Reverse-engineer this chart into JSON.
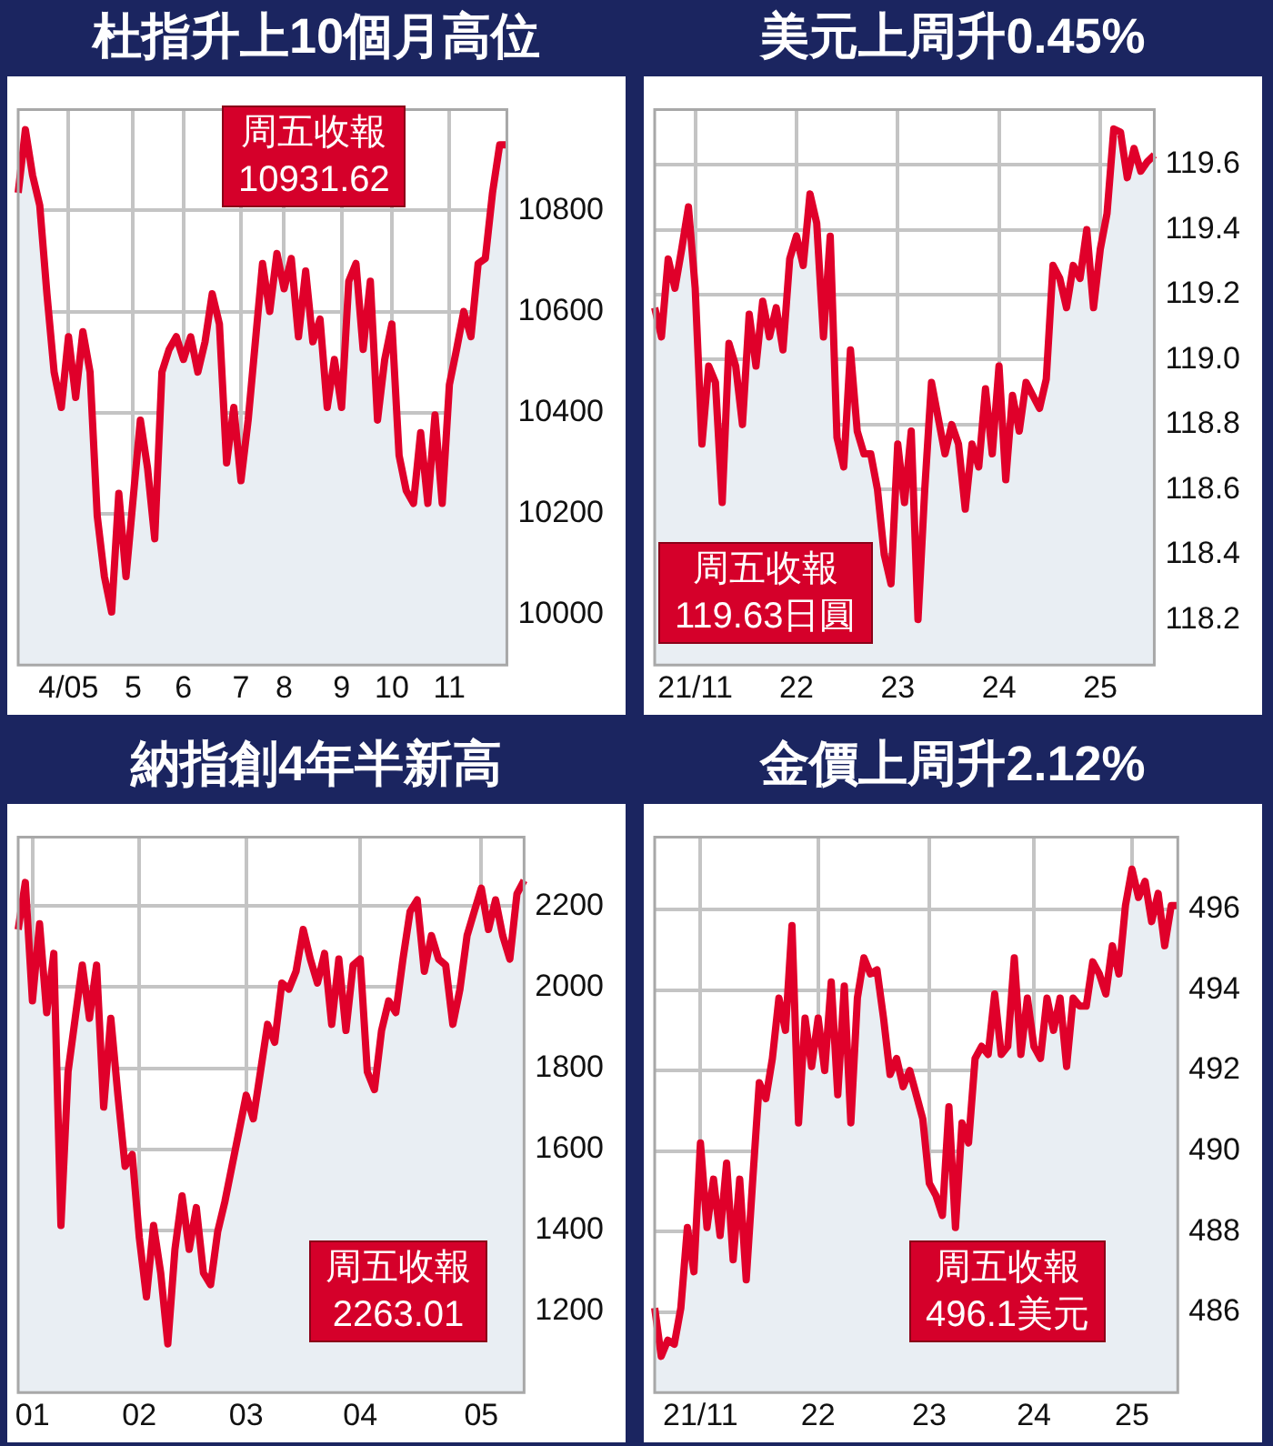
{
  "chart_data": [
    {
      "type": "area",
      "title": "杜指升上10個月高位",
      "annotations": [
        "周五收報",
        "10931.62"
      ],
      "categories": [
        null,
        null,
        null,
        null,
        null,
        null,
        null,
        "4/05",
        null,
        null,
        null,
        null,
        null,
        null,
        null,
        null,
        "5",
        null,
        null,
        null,
        null,
        null,
        null,
        "6",
        null,
        null,
        null,
        null,
        null,
        null,
        null,
        "7",
        null,
        null,
        null,
        null,
        null,
        "8",
        null,
        null,
        null,
        null,
        null,
        null,
        null,
        "9",
        null,
        null,
        null,
        null,
        null,
        null,
        "10",
        null,
        null,
        null,
        null,
        null,
        null,
        null,
        "11",
        null,
        null,
        null,
        null,
        null,
        null,
        null,
        null
      ],
      "series": [
        {
          "color": "#e0002a",
          "values": [
            10835,
            10960,
            10870,
            10810,
            10635,
            10480,
            10410,
            10550,
            10430,
            10560,
            10480,
            10195,
            10075,
            10005,
            10240,
            10075,
            10230,
            10385,
            10290,
            10150,
            10480,
            10525,
            10550,
            10505,
            10550,
            10480,
            10540,
            10635,
            10575,
            10300,
            10410,
            10265,
            10385,
            10540,
            10695,
            10600,
            10715,
            10645,
            10705,
            10550,
            10680,
            10540,
            10585,
            10410,
            10505,
            10410,
            10660,
            10695,
            10525,
            10660,
            10385,
            10505,
            10575,
            10315,
            10245,
            10220,
            10360,
            10220,
            10395,
            10220,
            10455,
            10525,
            10600,
            10550,
            10695,
            10705,
            10835,
            10930,
            10930
          ]
        }
      ],
      "ylim": [
        9900,
        11000
      ],
      "yticks": [
        10000,
        10200,
        10400,
        10600,
        10800
      ],
      "grid": true
    },
    {
      "type": "area",
      "title": "美元上周升0.45%",
      "annotations": [
        "周五收報",
        "119.63日圓"
      ],
      "categories": [
        null,
        null,
        null,
        null,
        null,
        null,
        "21/11",
        null,
        null,
        null,
        null,
        null,
        null,
        null,
        null,
        null,
        null,
        null,
        null,
        null,
        null,
        "22",
        null,
        null,
        null,
        null,
        null,
        null,
        null,
        null,
        null,
        null,
        null,
        null,
        null,
        null,
        "23",
        null,
        null,
        null,
        null,
        null,
        null,
        null,
        null,
        null,
        null,
        null,
        null,
        null,
        null,
        "24",
        null,
        null,
        null,
        null,
        null,
        null,
        null,
        null,
        null,
        null,
        null,
        null,
        null,
        null,
        "25",
        null,
        null,
        null,
        null,
        null,
        null,
        null,
        null
      ],
      "series": [
        {
          "color": "#e0002a",
          "values": [
            119.16,
            119.07,
            119.31,
            119.22,
            119.34,
            119.47,
            119.22,
            118.74,
            118.98,
            118.93,
            118.56,
            119.05,
            118.98,
            118.8,
            119.14,
            118.98,
            119.18,
            119.07,
            119.16,
            119.03,
            119.31,
            119.38,
            119.29,
            119.51,
            119.42,
            119.07,
            119.38,
            118.76,
            118.67,
            119.03,
            118.78,
            118.71,
            118.71,
            118.6,
            118.4,
            118.31,
            118.74,
            118.56,
            118.78,
            118.2,
            118.6,
            118.93,
            118.82,
            118.71,
            118.8,
            118.74,
            118.54,
            118.74,
            118.67,
            118.91,
            118.71,
            118.98,
            118.63,
            118.89,
            118.78,
            118.93,
            118.89,
            118.85,
            118.94,
            119.29,
            119.25,
            119.16,
            119.29,
            119.25,
            119.4,
            119.16,
            119.34,
            119.45,
            119.71,
            119.7,
            119.56,
            119.65,
            119.58,
            119.61,
            119.63
          ]
        }
      ],
      "ylim": [
        118.06,
        119.77
      ],
      "yticks": [
        {
          "value": 118.2,
          "label": "118.2"
        },
        {
          "value": 118.4,
          "label": "118.4"
        },
        {
          "value": 118.6,
          "label": "118.6"
        },
        {
          "value": 118.8,
          "label": "118.8"
        },
        {
          "value": 119,
          "label": "119.0"
        },
        {
          "value": 119.2,
          "label": "119.2"
        },
        {
          "value": 119.4,
          "label": "119.4"
        },
        {
          "value": 119.6,
          "label": "119.6"
        }
      ],
      "grid": true
    },
    {
      "type": "area",
      "title": "納指創4年半新高",
      "annotations": [
        "周五收報",
        "2263.01"
      ],
      "categories": [
        null,
        null,
        "01",
        null,
        null,
        null,
        null,
        null,
        null,
        null,
        null,
        null,
        null,
        null,
        null,
        null,
        null,
        "02",
        null,
        null,
        null,
        null,
        null,
        null,
        null,
        null,
        null,
        null,
        null,
        null,
        null,
        null,
        "03",
        null,
        null,
        null,
        null,
        null,
        null,
        null,
        null,
        null,
        null,
        null,
        null,
        null,
        null,
        null,
        "04",
        null,
        null,
        null,
        null,
        null,
        null,
        null,
        null,
        null,
        null,
        null,
        null,
        null,
        null,
        null,
        null,
        "05",
        null,
        null,
        null,
        null,
        null,
        null
      ],
      "series": [
        {
          "color": "#e0002a",
          "values": [
            2142,
            2258,
            1966,
            2156,
            1937,
            2083,
            1412,
            1791,
            1923,
            2054,
            1923,
            2054,
            1704,
            1923,
            1733,
            1558,
            1587,
            1382,
            1236,
            1412,
            1295,
            1120,
            1353,
            1485,
            1353,
            1456,
            1295,
            1266,
            1397,
            1470,
            1558,
            1645,
            1733,
            1675,
            1791,
            1908,
            1864,
            2010,
            1995,
            2039,
            2142,
            2069,
            2010,
            2083,
            1908,
            2069,
            1893,
            2054,
            2069,
            1791,
            1747,
            1893,
            1966,
            1937,
            2069,
            2186,
            2215,
            2039,
            2127,
            2069,
            2054,
            1908,
            1995,
            2127,
            2186,
            2244,
            2142,
            2215,
            2127,
            2069,
            2230,
            2263
          ]
        }
      ],
      "ylim": [
        1000,
        2370
      ],
      "yticks": [
        1200,
        1400,
        1600,
        1800,
        2000,
        2200
      ],
      "grid": true
    },
    {
      "type": "area",
      "title": "金價上周升2.12%",
      "annotations": [
        "周五收報",
        "496.1美元"
      ],
      "categories": [
        null,
        null,
        null,
        null,
        null,
        null,
        null,
        "21/11",
        null,
        null,
        null,
        null,
        null,
        null,
        null,
        null,
        null,
        null,
        null,
        null,
        null,
        null,
        null,
        null,
        null,
        "22",
        null,
        null,
        null,
        null,
        null,
        null,
        null,
        null,
        null,
        null,
        null,
        null,
        null,
        null,
        null,
        null,
        "23",
        null,
        null,
        null,
        null,
        null,
        null,
        null,
        null,
        null,
        null,
        null,
        null,
        null,
        null,
        null,
        "24",
        null,
        null,
        null,
        null,
        null,
        null,
        null,
        null,
        null,
        null,
        null,
        null,
        null,
        null,
        "25",
        null,
        null,
        null,
        null,
        null,
        null,
        null
      ],
      "series": [
        {
          "color": "#e0002a",
          "values": [
            486.1,
            484.9,
            485.3,
            485.2,
            486.1,
            488.1,
            487,
            490.2,
            488.1,
            489.3,
            487.9,
            489.7,
            487.3,
            489.3,
            486.8,
            489.3,
            491.7,
            491.3,
            492.3,
            493.8,
            493,
            495.6,
            490.7,
            493.3,
            492.1,
            493.3,
            492,
            494.2,
            491.4,
            494.1,
            490.7,
            493.8,
            494.8,
            494.4,
            494.5,
            493.3,
            491.9,
            492.3,
            491.6,
            492,
            491.4,
            490.8,
            489.2,
            488.9,
            488.4,
            491.1,
            488.1,
            490.7,
            490.2,
            492.3,
            492.6,
            492.4,
            493.9,
            492.4,
            492.6,
            494.8,
            492.4,
            493.8,
            492.6,
            492.3,
            493.8,
            493,
            493.8,
            492.1,
            493.8,
            493.6,
            493.6,
            494.7,
            494.4,
            493.9,
            495.1,
            494.4,
            496.1,
            497,
            496.3,
            496.7,
            495.7,
            496.4,
            495.1,
            496.1,
            496.1
          ]
        }
      ],
      "ylim": [
        484,
        497.8
      ],
      "yticks": [
        486,
        488,
        490,
        492,
        494,
        496
      ],
      "grid": true
    }
  ]
}
